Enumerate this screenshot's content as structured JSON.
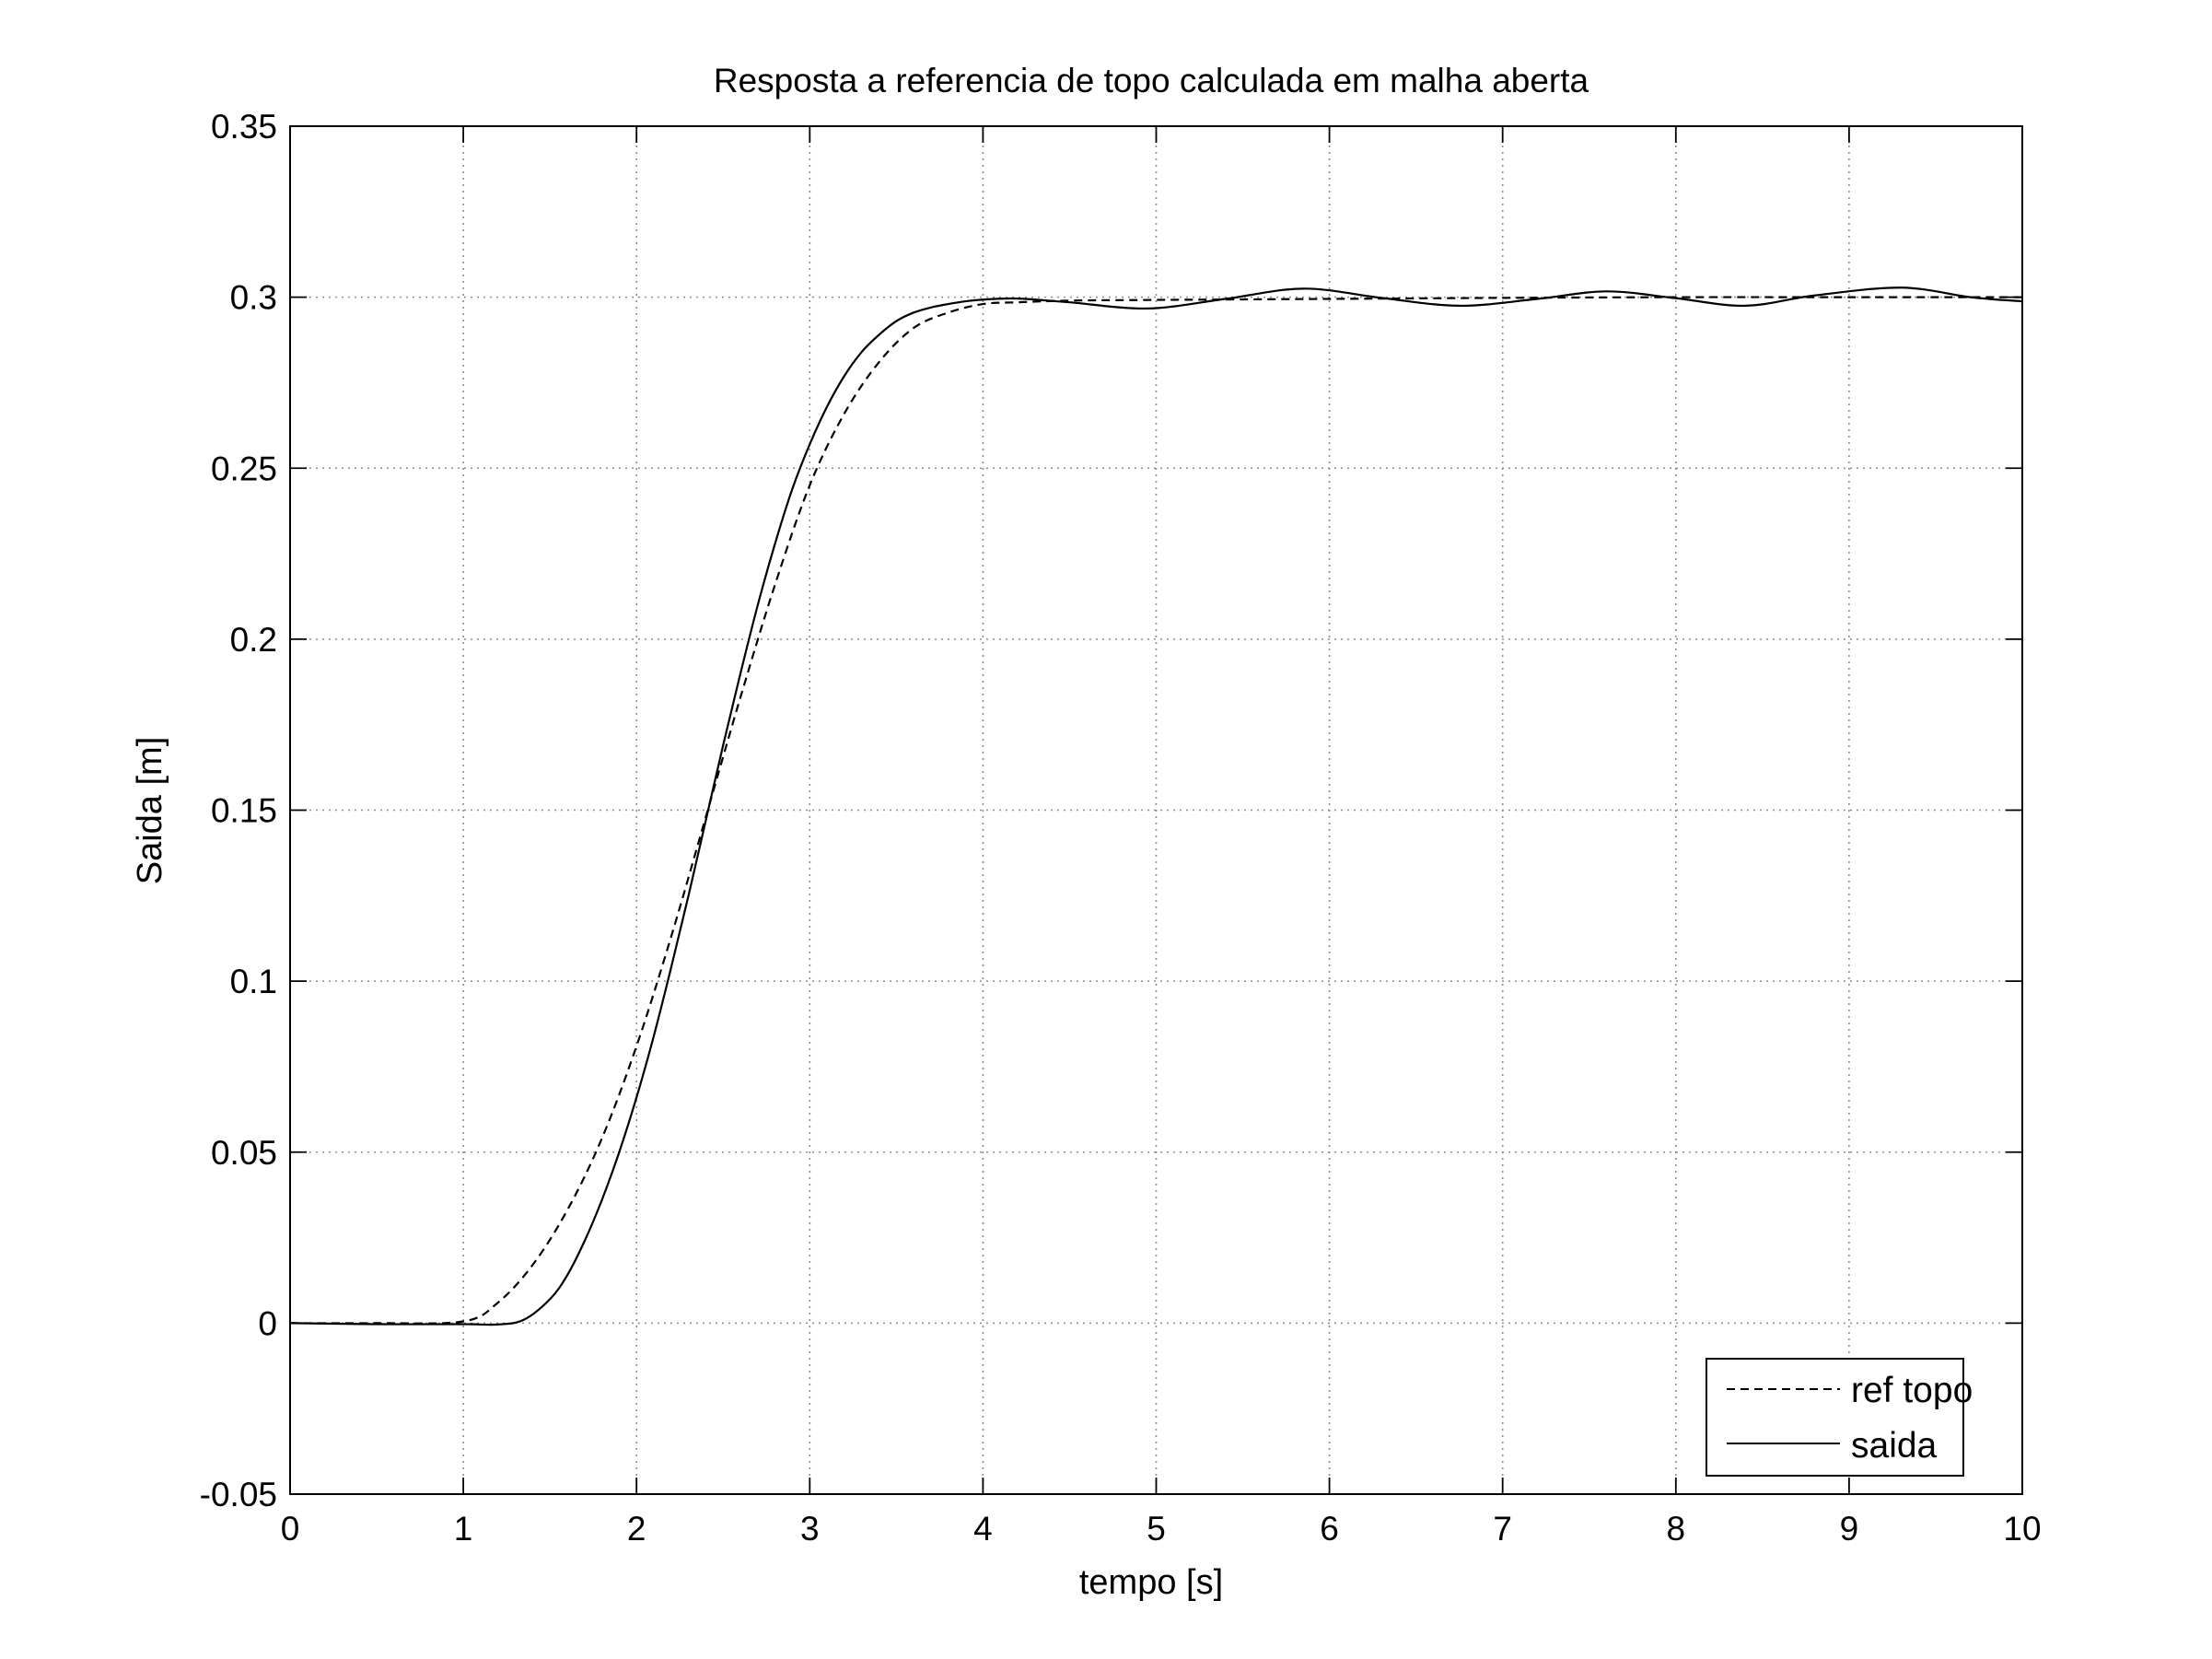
{
  "chart_data": {
    "type": "line",
    "title": "Resposta a referencia de topo calculada em malha aberta",
    "xlabel": "tempo [s]",
    "ylabel": "Saida [m]",
    "xlim": [
      0,
      10
    ],
    "ylim": [
      -0.05,
      0.35
    ],
    "xticks": [
      0,
      1,
      2,
      3,
      4,
      5,
      6,
      7,
      8,
      9,
      10
    ],
    "xtick_labels": [
      "0",
      "1",
      "2",
      "3",
      "4",
      "5",
      "6",
      "7",
      "8",
      "9",
      "10"
    ],
    "yticks": [
      -0.05,
      0,
      0.05,
      0.1,
      0.15,
      0.2,
      0.25,
      0.3,
      0.35
    ],
    "ytick_labels": [
      "-0.05",
      "0",
      "0.05",
      "0.1",
      "0.15",
      "0.2",
      "0.25",
      "0.3",
      "0.35"
    ],
    "grid": true,
    "legend_position": "bottom-right",
    "series": [
      {
        "name": "ref topo",
        "line_style": "dashed",
        "color": "#000000",
        "x": [
          0,
          0.5,
          1.0,
          1.2,
          1.4,
          1.6,
          1.8,
          2.0,
          2.2,
          2.4,
          2.6,
          2.8,
          3.0,
          3.2,
          3.4,
          3.6,
          3.8,
          4.0,
          4.2,
          4.5,
          5.0,
          6.0,
          7.0,
          8.0,
          9.0,
          10.0
        ],
        "y": [
          0,
          0,
          0.0005,
          0.006,
          0.017,
          0.033,
          0.054,
          0.081,
          0.113,
          0.148,
          0.183,
          0.216,
          0.245,
          0.266,
          0.281,
          0.291,
          0.2955,
          0.298,
          0.2985,
          0.299,
          0.2992,
          0.2995,
          0.2998,
          0.3,
          0.3,
          0.3
        ]
      },
      {
        "name": "saida",
        "line_style": "solid",
        "color": "#000000",
        "x": [
          0,
          0.5,
          1.0,
          1.2,
          1.35,
          1.5,
          1.6,
          1.7,
          1.8,
          1.9,
          2.0,
          2.1,
          2.2,
          2.3,
          2.4,
          2.5,
          2.6,
          2.7,
          2.8,
          2.9,
          3.0,
          3.1,
          3.2,
          3.3,
          3.4,
          3.5,
          3.6,
          3.7,
          3.8,
          3.9,
          4.0,
          4.2,
          4.5,
          4.95,
          5.4,
          5.85,
          6.3,
          6.75,
          7.2,
          7.6,
          8.0,
          8.4,
          8.8,
          9.3,
          9.7,
          10.0
        ],
        "y": [
          0,
          -0.0003,
          -0.0003,
          -0.0004,
          0.001,
          0.007,
          0.014,
          0.024,
          0.036,
          0.05,
          0.066,
          0.084,
          0.104,
          0.125,
          0.147,
          0.169,
          0.19,
          0.21,
          0.228,
          0.244,
          0.257,
          0.268,
          0.277,
          0.284,
          0.289,
          0.293,
          0.2955,
          0.297,
          0.298,
          0.2988,
          0.2993,
          0.2996,
          0.2985,
          0.2967,
          0.2995,
          0.3025,
          0.2998,
          0.2975,
          0.2995,
          0.3017,
          0.2997,
          0.2975,
          0.3005,
          0.3028,
          0.3,
          0.2988
        ]
      }
    ]
  }
}
